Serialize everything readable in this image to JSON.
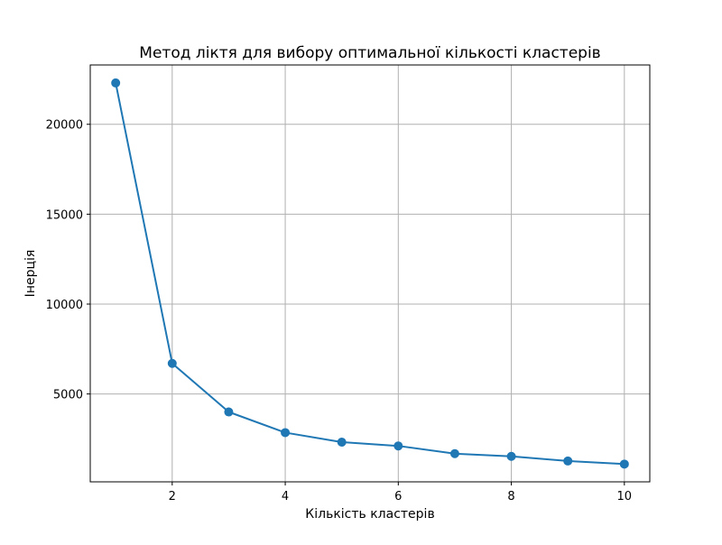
{
  "chart_data": {
    "type": "line",
    "title": "Метод ліктя для вибору оптимальної кількості кластерів",
    "xlabel": "Кількість кластерів",
    "ylabel": "Інерція",
    "x": [
      1,
      2,
      3,
      4,
      5,
      6,
      7,
      8,
      9,
      10
    ],
    "series": [
      {
        "values": [
          22300,
          6700,
          4000,
          2850,
          2320,
          2110,
          1680,
          1530,
          1270,
          1100
        ],
        "color": "#1f77b4",
        "marker": "circle"
      }
    ],
    "xlim": [
      0.55,
      10.45
    ],
    "ylim": [
      112,
      23300
    ],
    "xticks": [
      2,
      4,
      6,
      8,
      10
    ],
    "yticks": [
      5000,
      10000,
      15000,
      20000
    ],
    "xtick_labels": [
      "2",
      "4",
      "6",
      "8",
      "10"
    ],
    "ytick_labels": [
      "5000",
      "10000",
      "15000",
      "20000"
    ],
    "grid": true,
    "legend": "none"
  }
}
